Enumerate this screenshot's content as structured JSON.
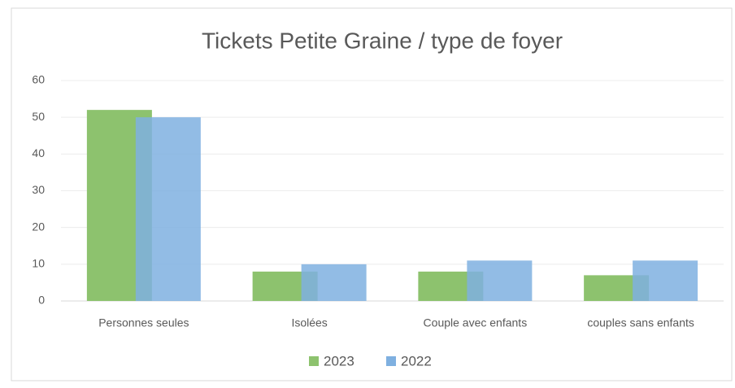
{
  "chart_data": {
    "type": "bar",
    "title": "Tickets  Petite Graine / type de foyer",
    "categories": [
      "Personnes seules",
      "Isolées",
      "Couple avec enfants",
      "couples sans enfants"
    ],
    "series": [
      {
        "name": "2023",
        "color": "#8dc26e",
        "values": [
          52,
          8,
          8,
          7
        ]
      },
      {
        "name": "2022",
        "color": "#7fb0e0",
        "values": [
          50,
          10,
          11,
          11
        ]
      }
    ],
    "ylim": [
      0,
      60
    ],
    "yticks": [
      0,
      10,
      20,
      30,
      40,
      50,
      60
    ],
    "grid": true,
    "legend": "bottom"
  }
}
